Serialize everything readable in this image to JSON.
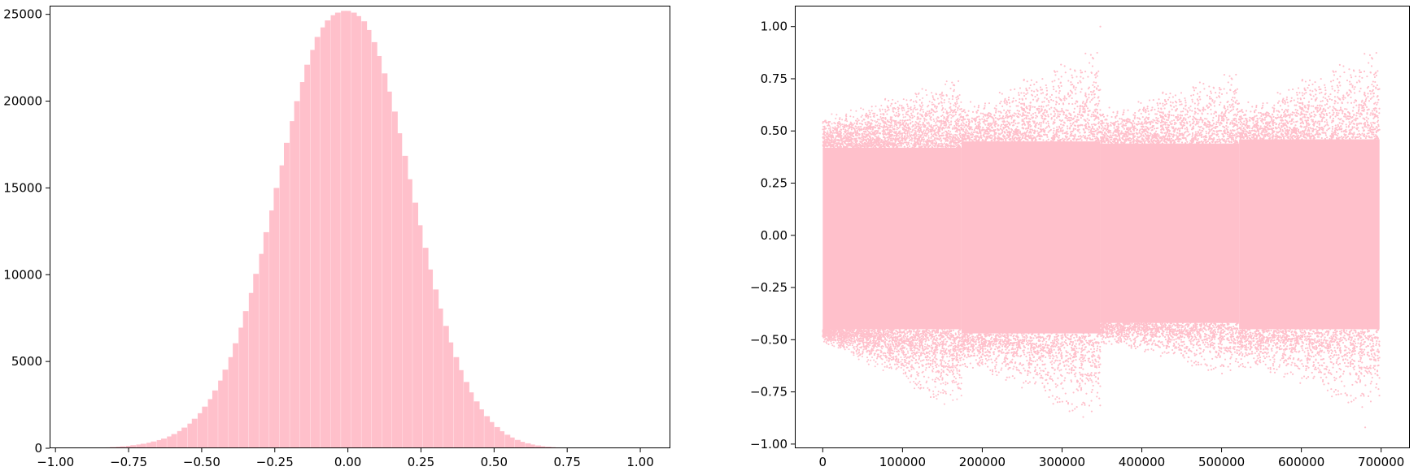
{
  "colors": {
    "series": "#ffc0cb",
    "axis": "#000000",
    "background": "#ffffff"
  },
  "chart_data": [
    {
      "type": "bar",
      "subtype": "histogram",
      "title": "",
      "xlabel": "",
      "ylabel": "",
      "grid": false,
      "legend": "none",
      "xlim": [
        -1.02,
        1.1
      ],
      "ylim": [
        0,
        25500
      ],
      "xticks": [
        -1.0,
        -0.75,
        -0.5,
        -0.25,
        0.0,
        0.25,
        0.5,
        0.75,
        1.0
      ],
      "xtick_labels": [
        "−1.00",
        "−0.75",
        "−0.50",
        "−0.25",
        "0.00",
        "0.25",
        "0.50",
        "0.75",
        "1.00"
      ],
      "yticks": [
        0,
        5000,
        10000,
        15000,
        20000,
        25000
      ],
      "ytick_labels": [
        "0",
        "5000",
        "10000",
        "15000",
        "20000",
        "25000"
      ],
      "bin_width": 0.0175,
      "bins": [
        {
          "x": -0.98,
          "count": 0
        },
        {
          "x": -0.96,
          "count": 2
        },
        {
          "x": -0.945,
          "count": 3
        },
        {
          "x": -0.925,
          "count": 5
        },
        {
          "x": -0.91,
          "count": 8
        },
        {
          "x": -0.89,
          "count": 12
        },
        {
          "x": -0.875,
          "count": 18
        },
        {
          "x": -0.855,
          "count": 25
        },
        {
          "x": -0.84,
          "count": 35
        },
        {
          "x": -0.82,
          "count": 50
        },
        {
          "x": -0.805,
          "count": 70
        },
        {
          "x": -0.785,
          "count": 90
        },
        {
          "x": -0.77,
          "count": 110
        },
        {
          "x": -0.75,
          "count": 140
        },
        {
          "x": -0.735,
          "count": 175
        },
        {
          "x": -0.715,
          "count": 215
        },
        {
          "x": -0.7,
          "count": 260
        },
        {
          "x": -0.68,
          "count": 320
        },
        {
          "x": -0.665,
          "count": 390
        },
        {
          "x": -0.645,
          "count": 470
        },
        {
          "x": -0.63,
          "count": 560
        },
        {
          "x": -0.61,
          "count": 680
        },
        {
          "x": -0.595,
          "count": 820
        },
        {
          "x": -0.575,
          "count": 990
        },
        {
          "x": -0.56,
          "count": 1190
        },
        {
          "x": -0.54,
          "count": 1420
        },
        {
          "x": -0.525,
          "count": 1700
        },
        {
          "x": -0.505,
          "count": 2020
        },
        {
          "x": -0.49,
          "count": 2400
        },
        {
          "x": -0.47,
          "count": 2830
        },
        {
          "x": -0.455,
          "count": 3330
        },
        {
          "x": -0.435,
          "count": 3900
        },
        {
          "x": -0.42,
          "count": 4530
        },
        {
          "x": -0.4,
          "count": 5250
        },
        {
          "x": -0.385,
          "count": 6050
        },
        {
          "x": -0.365,
          "count": 6950
        },
        {
          "x": -0.35,
          "count": 7900
        },
        {
          "x": -0.33,
          "count": 8950
        },
        {
          "x": -0.315,
          "count": 10050
        },
        {
          "x": -0.295,
          "count": 11200
        },
        {
          "x": -0.28,
          "count": 12450
        },
        {
          "x": -0.26,
          "count": 13700
        },
        {
          "x": -0.245,
          "count": 15000
        },
        {
          "x": -0.225,
          "count": 16300
        },
        {
          "x": -0.21,
          "count": 17600
        },
        {
          "x": -0.19,
          "count": 18850
        },
        {
          "x": -0.175,
          "count": 20000
        },
        {
          "x": -0.155,
          "count": 21100
        },
        {
          "x": -0.14,
          "count": 22100
        },
        {
          "x": -0.12,
          "count": 22950
        },
        {
          "x": -0.105,
          "count": 23700
        },
        {
          "x": -0.085,
          "count": 24250
        },
        {
          "x": -0.07,
          "count": 24650
        },
        {
          "x": -0.05,
          "count": 24950
        },
        {
          "x": -0.035,
          "count": 25100
        },
        {
          "x": -0.015,
          "count": 25200
        },
        {
          "x": 0.0,
          "count": 25200
        },
        {
          "x": 0.02,
          "count": 25100
        },
        {
          "x": 0.035,
          "count": 24900
        },
        {
          "x": 0.055,
          "count": 24600
        },
        {
          "x": 0.07,
          "count": 24100
        },
        {
          "x": 0.09,
          "count": 23400
        },
        {
          "x": 0.105,
          "count": 22600
        },
        {
          "x": 0.125,
          "count": 21600
        },
        {
          "x": 0.14,
          "count": 20550
        },
        {
          "x": 0.16,
          "count": 19400
        },
        {
          "x": 0.175,
          "count": 18150
        },
        {
          "x": 0.195,
          "count": 16850
        },
        {
          "x": 0.21,
          "count": 15500
        },
        {
          "x": 0.23,
          "count": 14150
        },
        {
          "x": 0.245,
          "count": 12850
        },
        {
          "x": 0.265,
          "count": 11550
        },
        {
          "x": 0.28,
          "count": 10300
        },
        {
          "x": 0.3,
          "count": 9150
        },
        {
          "x": 0.315,
          "count": 8050
        },
        {
          "x": 0.335,
          "count": 7050
        },
        {
          "x": 0.35,
          "count": 6100
        },
        {
          "x": 0.37,
          "count": 5250
        },
        {
          "x": 0.385,
          "count": 4500
        },
        {
          "x": 0.405,
          "count": 3820
        },
        {
          "x": 0.42,
          "count": 3220
        },
        {
          "x": 0.44,
          "count": 2700
        },
        {
          "x": 0.455,
          "count": 2240
        },
        {
          "x": 0.475,
          "count": 1850
        },
        {
          "x": 0.49,
          "count": 1510
        },
        {
          "x": 0.51,
          "count": 1220
        },
        {
          "x": 0.525,
          "count": 980
        },
        {
          "x": 0.545,
          "count": 780
        },
        {
          "x": 0.56,
          "count": 620
        },
        {
          "x": 0.58,
          "count": 480
        },
        {
          "x": 0.595,
          "count": 370
        },
        {
          "x": 0.615,
          "count": 285
        },
        {
          "x": 0.63,
          "count": 215
        },
        {
          "x": 0.65,
          "count": 160
        },
        {
          "x": 0.665,
          "count": 120
        },
        {
          "x": 0.685,
          "count": 90
        },
        {
          "x": 0.7,
          "count": 65
        },
        {
          "x": 0.72,
          "count": 48
        },
        {
          "x": 0.735,
          "count": 35
        },
        {
          "x": 0.755,
          "count": 25
        },
        {
          "x": 0.77,
          "count": 18
        },
        {
          "x": 0.79,
          "count": 12
        },
        {
          "x": 0.805,
          "count": 8
        },
        {
          "x": 0.825,
          "count": 5
        },
        {
          "x": 0.84,
          "count": 3
        },
        {
          "x": 0.86,
          "count": 2
        },
        {
          "x": 0.875,
          "count": 1
        },
        {
          "x": 0.895,
          "count": 1
        }
      ]
    },
    {
      "type": "scatter",
      "title": "",
      "xlabel": "",
      "ylabel": "",
      "grid": false,
      "legend": "none",
      "xlim": [
        -35000,
        735000
      ],
      "ylim": [
        -1.02,
        1.1
      ],
      "xticks": [
        0,
        100000,
        200000,
        300000,
        400000,
        500000,
        600000,
        700000
      ],
      "xtick_labels": [
        "0",
        "100000",
        "200000",
        "300000",
        "400000",
        "500000",
        "600000",
        "700000"
      ],
      "yticks": [
        -1.0,
        -0.75,
        -0.5,
        -0.25,
        0.0,
        0.25,
        0.5,
        0.75,
        1.0
      ],
      "ytick_labels": [
        "−1.00",
        "−0.75",
        "−0.50",
        "−0.25",
        "0.00",
        "0.25",
        "0.50",
        "0.75",
        "1.00"
      ],
      "x_range": [
        0,
        698000
      ],
      "segments": [
        {
          "x_start": 0,
          "x_end": 174000,
          "core_low": -0.45,
          "core_high": 0.42,
          "low_start": -0.5,
          "low_end": -0.8,
          "high_start": 0.55,
          "high_end": 0.72
        },
        {
          "x_start": 174000,
          "x_end": 348000,
          "core_low": -0.47,
          "core_high": 0.45,
          "low_start": -0.6,
          "low_end": -0.85,
          "high_start": 0.6,
          "high_end": 0.85
        },
        {
          "x_start": 348000,
          "x_end": 522000,
          "core_low": -0.42,
          "core_high": 0.44,
          "low_start": -0.5,
          "low_end": -0.65,
          "high_start": 0.58,
          "high_end": 0.75
        },
        {
          "x_start": 522000,
          "x_end": 698000,
          "core_low": -0.45,
          "core_high": 0.46,
          "low_start": -0.6,
          "low_end": -0.8,
          "high_start": 0.6,
          "high_end": 0.85
        }
      ],
      "extremes": {
        "max": 1.0,
        "min": -0.92
      }
    }
  ]
}
